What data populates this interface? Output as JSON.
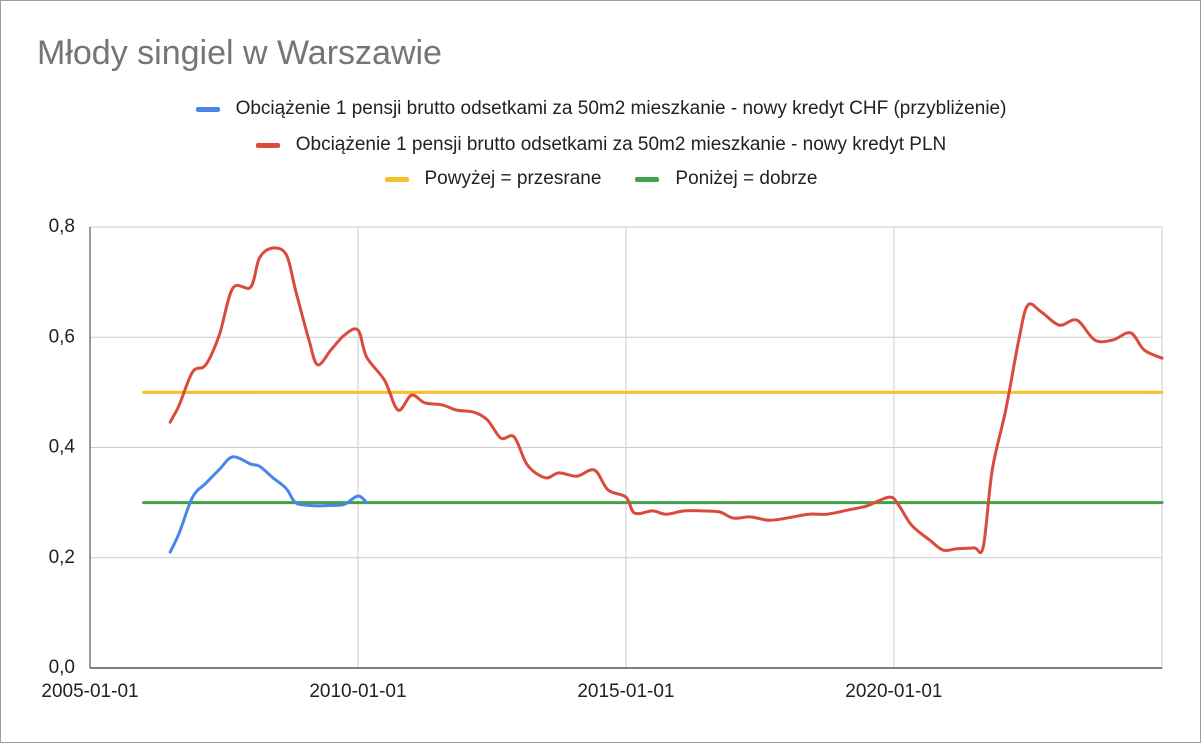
{
  "chart_data": {
    "type": "line",
    "title": "Młody singiel w Warszawie",
    "xlim": [
      "2005-01-01",
      "2025-01-01"
    ],
    "xticks": [
      "2005-01-01",
      "2010-01-01",
      "2015-01-01",
      "2020-01-01"
    ],
    "ylim": [
      0,
      0.8
    ],
    "yticks": [
      {
        "value": 0,
        "label": "0,0"
      },
      {
        "value": 0.2,
        "label": "0,2"
      },
      {
        "value": 0.4,
        "label": "0,4"
      },
      {
        "value": 0.6,
        "label": "0,6"
      },
      {
        "value": 0.8,
        "label": "0,8"
      }
    ],
    "grid": true,
    "legend": "top",
    "series": [
      {
        "name": "Obciążenie 1 pensji brutto odsetkami za 50m2 mieszkanie - nowy kredyt CHF (przybliżenie)",
        "color": "#4a86e8",
        "x": [
          "2006-07-01",
          "2006-09-01",
          "2006-12-01",
          "2007-03-01",
          "2007-06-01",
          "2007-09-01",
          "2008-01-01",
          "2008-03-01",
          "2008-06-01",
          "2008-09-01",
          "2008-11-01",
          "2009-02-01",
          "2009-04-01",
          "2009-07-01",
          "2009-10-01",
          "2010-01-01",
          "2010-03-01"
        ],
        "values": [
          0.21,
          0.245,
          0.31,
          0.335,
          0.36,
          0.383,
          0.37,
          0.366,
          0.345,
          0.325,
          0.3,
          0.295,
          0.294,
          0.295,
          0.297,
          0.312,
          0.3
        ]
      },
      {
        "name": "Obciążenie 1 pensji brutto odsetkami za 50m2 mieszkanie - nowy kredyt PLN",
        "color": "#db4b3b",
        "x": [
          "2006-07-01",
          "2006-09-01",
          "2006-12-01",
          "2007-03-01",
          "2007-06-01",
          "2007-09-01",
          "2008-01-01",
          "2008-03-01",
          "2008-06-01",
          "2008-09-01",
          "2008-11-01",
          "2009-02-01",
          "2009-04-01",
          "2009-07-01",
          "2009-10-01",
          "2010-01-01",
          "2010-03-01",
          "2010-07-01",
          "2010-10-01",
          "2011-01-01",
          "2011-04-01",
          "2011-08-01",
          "2011-11-01",
          "2012-03-01",
          "2012-06-01",
          "2012-09-01",
          "2012-12-01",
          "2013-03-01",
          "2013-07-01",
          "2013-10-01",
          "2014-02-01",
          "2014-06-01",
          "2014-09-01",
          "2015-01-01",
          "2015-03-01",
          "2015-07-01",
          "2015-10-01",
          "2016-02-01",
          "2016-06-01",
          "2016-10-01",
          "2017-01-01",
          "2017-05-01",
          "2017-09-01",
          "2018-01-01",
          "2018-06-01",
          "2018-10-01",
          "2019-03-01",
          "2019-07-01",
          "2019-12-01",
          "2020-02-01",
          "2020-05-01",
          "2020-09-01",
          "2020-12-01",
          "2021-03-01",
          "2021-07-01",
          "2021-09-01",
          "2021-11-01",
          "2022-02-01",
          "2022-05-01",
          "2022-07-01",
          "2022-10-01",
          "2023-02-01",
          "2023-06-01",
          "2023-10-01",
          "2024-02-01",
          "2024-06-01",
          "2024-09-01",
          "2025-01-01"
        ],
        "values": [
          0.446,
          0.477,
          0.537,
          0.55,
          0.604,
          0.689,
          0.691,
          0.744,
          0.762,
          0.749,
          0.686,
          0.595,
          0.55,
          0.577,
          0.604,
          0.613,
          0.564,
          0.522,
          0.468,
          0.495,
          0.481,
          0.477,
          0.468,
          0.464,
          0.45,
          0.417,
          0.419,
          0.368,
          0.345,
          0.354,
          0.348,
          0.359,
          0.323,
          0.31,
          0.281,
          0.285,
          0.279,
          0.285,
          0.285,
          0.283,
          0.272,
          0.274,
          0.268,
          0.272,
          0.279,
          0.279,
          0.287,
          0.294,
          0.31,
          0.296,
          0.259,
          0.232,
          0.214,
          0.216,
          0.218,
          0.22,
          0.359,
          0.468,
          0.595,
          0.658,
          0.646,
          0.622,
          0.631,
          0.595,
          0.595,
          0.608,
          0.577,
          0.562
        ]
      },
      {
        "name": "Powyżej = przesrane",
        "color": "#f6bf26",
        "x": [
          "2006-01-01",
          "2025-01-01"
        ],
        "values": [
          0.5,
          0.5
        ]
      },
      {
        "name": "Poniżej = dobrze",
        "color": "#43a047",
        "x": [
          "2006-01-01",
          "2025-01-01"
        ],
        "values": [
          0.3,
          0.3
        ]
      }
    ]
  }
}
